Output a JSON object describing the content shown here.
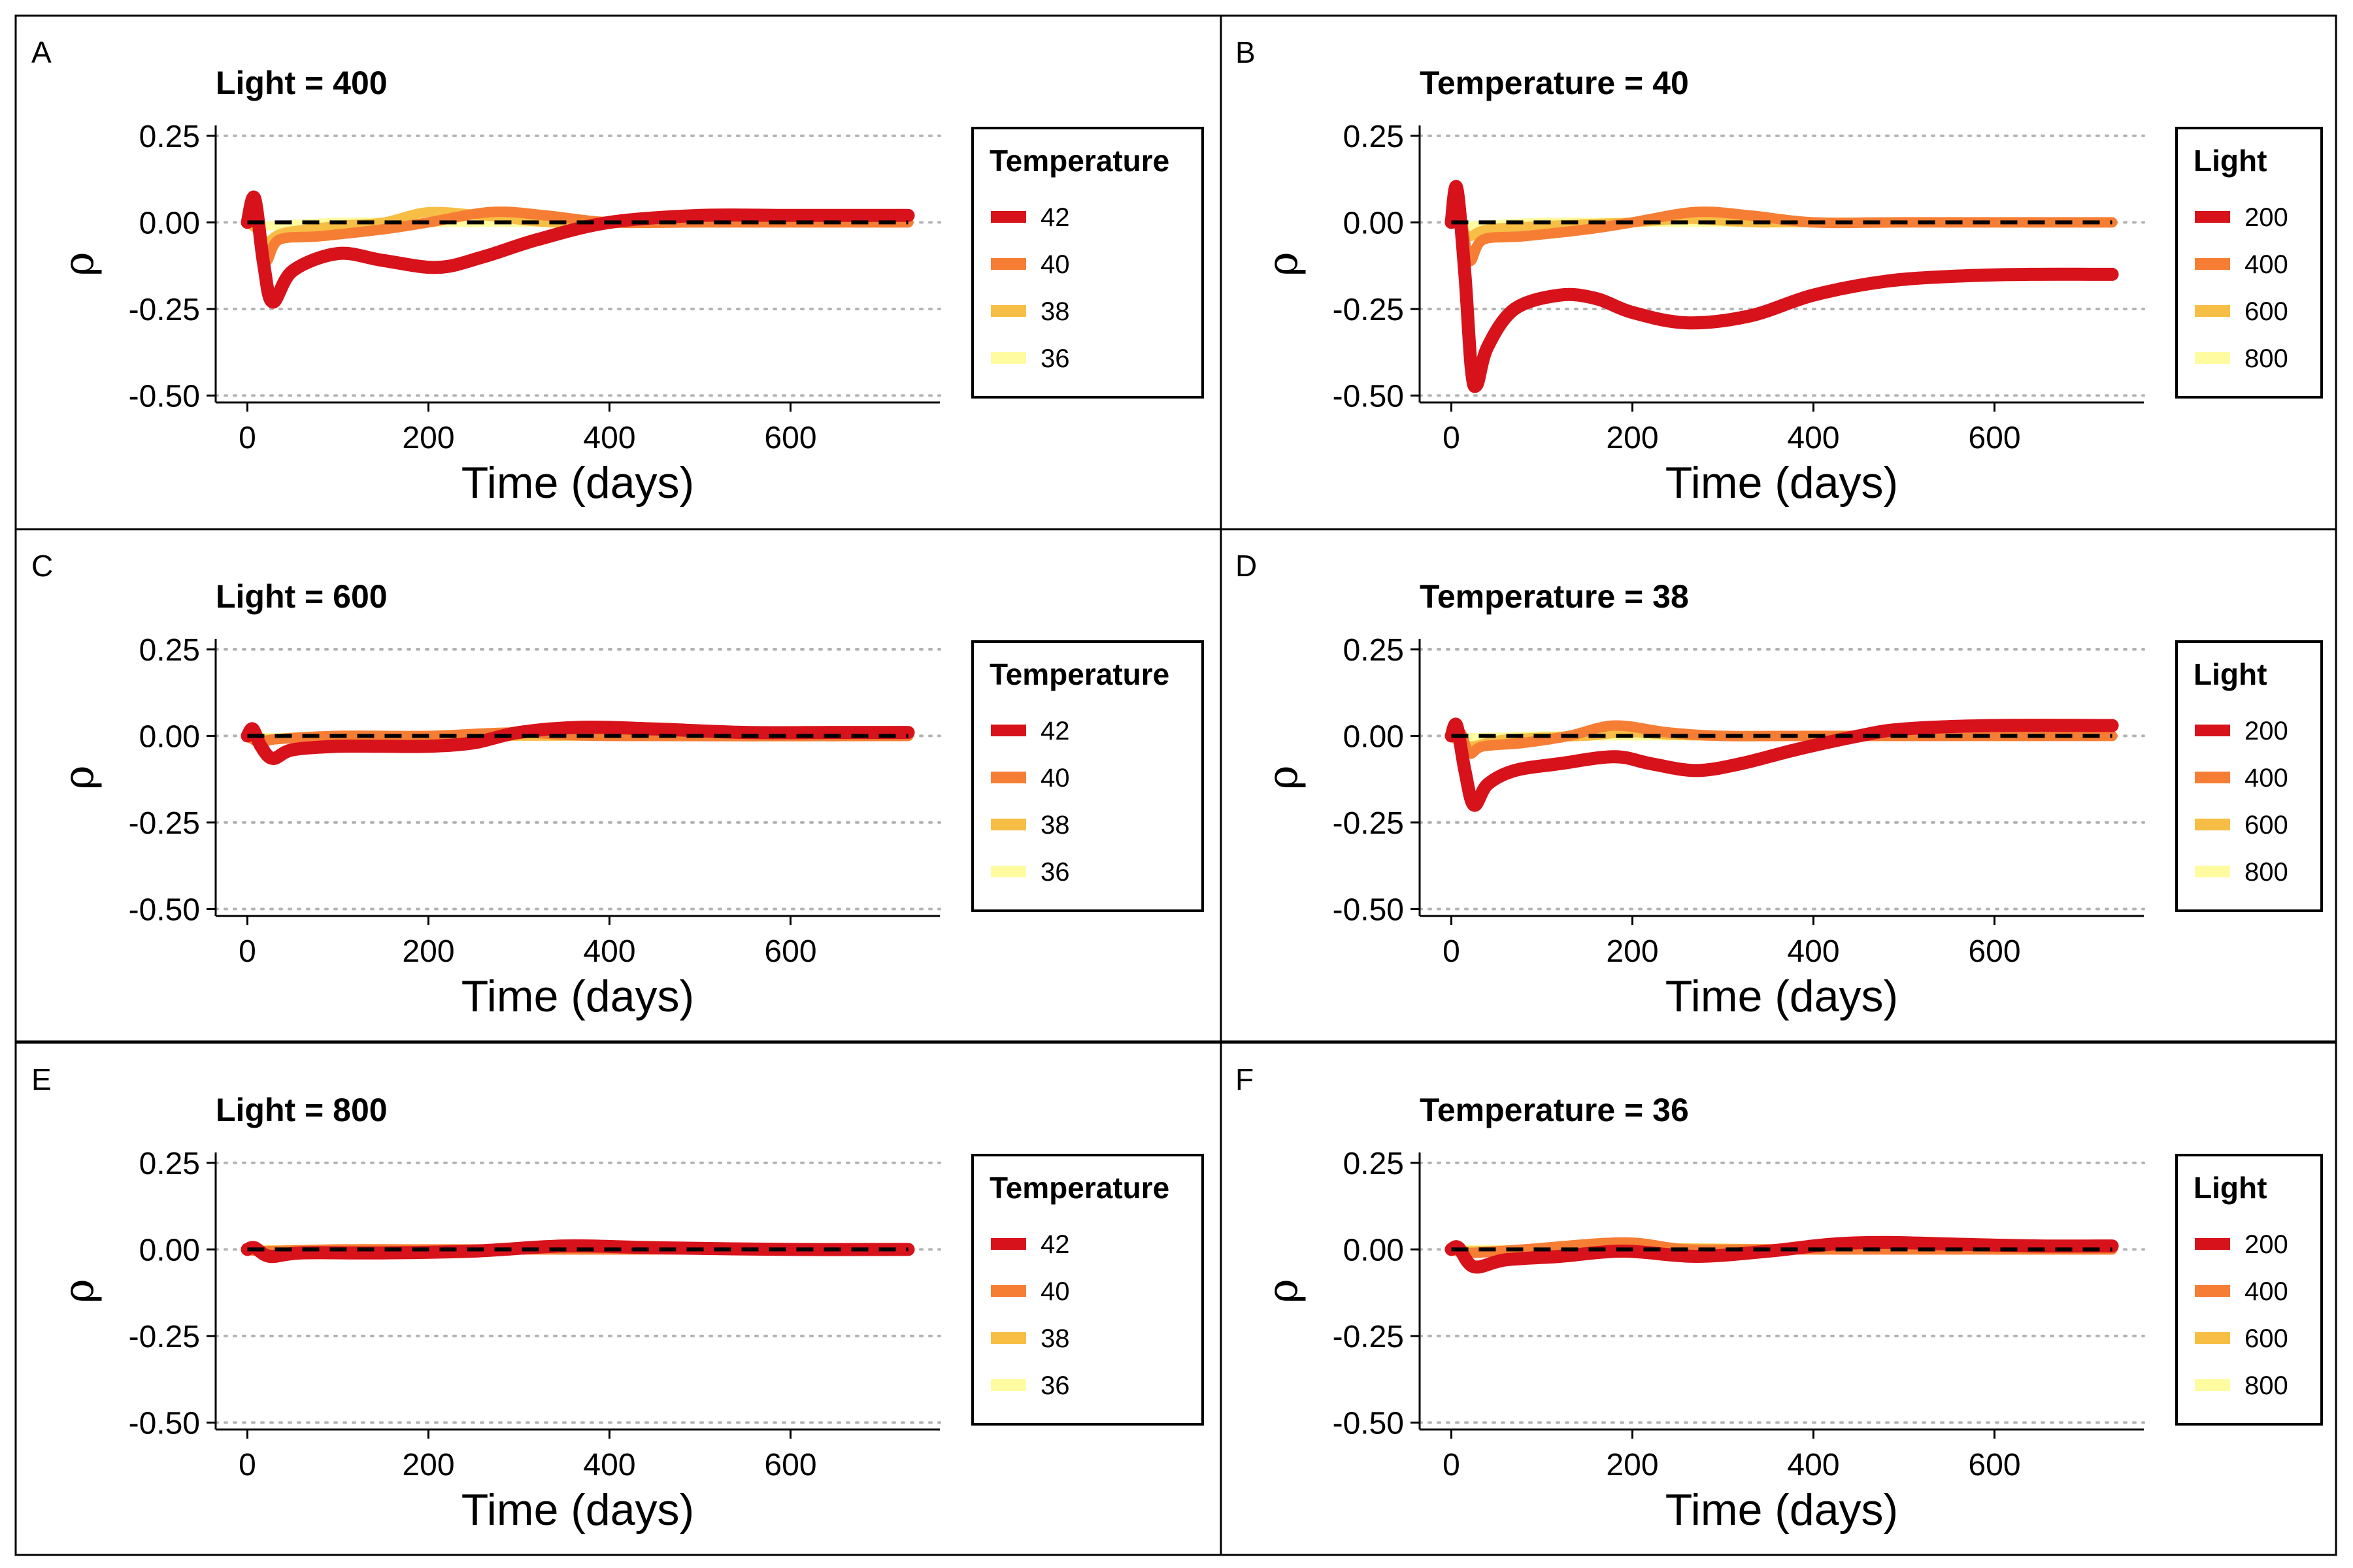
{
  "colors": {
    "s1": "#D7121B",
    "s2": "#F67E34",
    "s3": "#F7BE45",
    "s4": "#FEFBA1",
    "ref": "#000000",
    "grid": "#B3B3B3"
  },
  "chart_data": [
    {
      "panel": "A",
      "type": "line",
      "title": "Light = 400",
      "xlabel": "Time (days)",
      "ylabel": "ρ",
      "xlim": [
        -35,
        765
      ],
      "ylim": [
        -0.52,
        0.28
      ],
      "xticks": [
        "0",
        "200",
        "400",
        "600"
      ],
      "yticks": [
        "0.25",
        "0.00",
        "-0.25",
        "-0.50"
      ],
      "legend_title": "Temperature",
      "series": [
        {
          "name": "42",
          "x": [
            0,
            8,
            18,
            28,
            50,
            100,
            150,
            210,
            260,
            320,
            400,
            500,
            600,
            730
          ],
          "y": [
            0.0,
            0.07,
            -0.12,
            -0.23,
            -0.14,
            -0.09,
            -0.11,
            -0.13,
            -0.1,
            -0.05,
            0.0,
            0.02,
            0.02,
            0.02
          ]
        },
        {
          "name": "40",
          "x": [
            0,
            10,
            20,
            35,
            80,
            150,
            200,
            270,
            330,
            400,
            500,
            730
          ],
          "y": [
            0.0,
            0.02,
            -0.11,
            -0.05,
            -0.04,
            -0.02,
            0.0,
            0.03,
            0.02,
            0.0,
            0.0,
            0.0
          ]
        },
        {
          "name": "38",
          "x": [
            0,
            10,
            20,
            40,
            100,
            150,
            200,
            260,
            330,
            400,
            730
          ],
          "y": [
            0.0,
            -0.02,
            -0.06,
            -0.03,
            -0.01,
            0.0,
            0.03,
            0.02,
            0.0,
            0.0,
            0.0
          ]
        },
        {
          "name": "36",
          "x": [
            0,
            20,
            100,
            200,
            400,
            730
          ],
          "y": [
            0.0,
            -0.01,
            0.0,
            0.0,
            0.0,
            0.0
          ]
        }
      ]
    },
    {
      "panel": "B",
      "type": "line",
      "title": "Temperature = 40",
      "xlabel": "Time (days)",
      "ylabel": "ρ",
      "xlim": [
        -35,
        765
      ],
      "ylim": [
        -0.52,
        0.28
      ],
      "xticks": [
        "0",
        "200",
        "400",
        "600"
      ],
      "yticks": [
        "0.25",
        "0.00",
        "-0.25",
        "-0.50"
      ],
      "legend_title": "Light",
      "series": [
        {
          "name": "200",
          "x": [
            0,
            6,
            15,
            22,
            28,
            40,
            70,
            120,
            160,
            200,
            260,
            330,
            400,
            480,
            560,
            640,
            730
          ],
          "y": [
            0.0,
            0.1,
            -0.15,
            -0.42,
            -0.47,
            -0.36,
            -0.25,
            -0.21,
            -0.22,
            -0.26,
            -0.29,
            -0.27,
            -0.21,
            -0.17,
            -0.155,
            -0.15,
            -0.15
          ]
        },
        {
          "name": "400",
          "x": [
            0,
            10,
            20,
            35,
            80,
            150,
            200,
            270,
            330,
            400,
            500,
            730
          ],
          "y": [
            0.0,
            0.02,
            -0.11,
            -0.05,
            -0.04,
            -0.02,
            0.0,
            0.03,
            0.02,
            0.0,
            0.0,
            0.0
          ]
        },
        {
          "name": "600",
          "x": [
            0,
            10,
            20,
            40,
            100,
            200,
            260,
            330,
            400,
            730
          ],
          "y": [
            0.0,
            -0.01,
            -0.04,
            -0.02,
            -0.01,
            0.0,
            0.01,
            0.0,
            0.0,
            0.0
          ]
        },
        {
          "name": "800",
          "x": [
            0,
            20,
            100,
            200,
            400,
            730
          ],
          "y": [
            0.0,
            -0.01,
            0.0,
            0.0,
            0.0,
            0.0
          ]
        }
      ]
    },
    {
      "panel": "C",
      "type": "line",
      "title": "Light = 600",
      "xlabel": "Time (days)",
      "ylabel": "ρ",
      "xlim": [
        -35,
        765
      ],
      "ylim": [
        -0.52,
        0.28
      ],
      "xticks": [
        "0",
        "200",
        "400",
        "600"
      ],
      "yticks": [
        "0.25",
        "0.00",
        "-0.25",
        "-0.50"
      ],
      "legend_title": "Temperature",
      "series": [
        {
          "name": "42",
          "x": [
            0,
            6,
            15,
            28,
            50,
            100,
            150,
            200,
            250,
            300,
            370,
            450,
            550,
            650,
            730
          ],
          "y": [
            0.0,
            0.02,
            -0.03,
            -0.065,
            -0.04,
            -0.03,
            -0.03,
            -0.03,
            -0.02,
            0.01,
            0.025,
            0.02,
            0.01,
            0.01,
            0.01
          ]
        },
        {
          "name": "40",
          "x": [
            0,
            15,
            30,
            100,
            200,
            300,
            400,
            730
          ],
          "y": [
            0.0,
            -0.02,
            -0.01,
            0.0,
            0.0,
            0.01,
            0.0,
            0.0
          ]
        },
        {
          "name": "38",
          "x": [
            0,
            20,
            100,
            200,
            400,
            730
          ],
          "y": [
            0.0,
            -0.01,
            0.0,
            0.0,
            0.0,
            0.0
          ]
        },
        {
          "name": "36",
          "x": [
            0,
            20,
            100,
            200,
            400,
            730
          ],
          "y": [
            0.0,
            -0.005,
            0.0,
            0.0,
            0.0,
            0.0
          ]
        }
      ]
    },
    {
      "panel": "D",
      "type": "line",
      "title": "Temperature = 38",
      "xlabel": "Time (days)",
      "ylabel": "ρ",
      "xlim": [
        -35,
        765
      ],
      "ylim": [
        -0.52,
        0.28
      ],
      "xticks": [
        "0",
        "200",
        "400",
        "600"
      ],
      "yticks": [
        "0.25",
        "0.00",
        "-0.25",
        "-0.50"
      ],
      "legend_title": "Light",
      "series": [
        {
          "name": "200",
          "x": [
            0,
            6,
            15,
            25,
            40,
            70,
            120,
            180,
            220,
            270,
            320,
            380,
            450,
            500,
            600,
            730
          ],
          "y": [
            0.0,
            0.03,
            -0.1,
            -0.2,
            -0.14,
            -0.1,
            -0.08,
            -0.06,
            -0.08,
            -0.1,
            -0.08,
            -0.04,
            0.0,
            0.02,
            0.03,
            0.03
          ]
        },
        {
          "name": "400",
          "x": [
            0,
            10,
            20,
            35,
            80,
            130,
            180,
            240,
            300,
            400,
            730
          ],
          "y": [
            0.0,
            0.01,
            -0.05,
            -0.03,
            -0.02,
            0.0,
            0.03,
            0.01,
            0.0,
            0.0,
            0.0
          ]
        },
        {
          "name": "600",
          "x": [
            0,
            20,
            60,
            150,
            200,
            300,
            730
          ],
          "y": [
            0.0,
            -0.03,
            -0.01,
            0.0,
            0.01,
            0.0,
            0.0
          ]
        },
        {
          "name": "800",
          "x": [
            0,
            20,
            100,
            200,
            400,
            730
          ],
          "y": [
            0.0,
            -0.005,
            0.0,
            0.0,
            0.0,
            0.0
          ]
        }
      ]
    },
    {
      "panel": "E",
      "type": "line",
      "title": "Light = 800",
      "xlabel": "Time (days)",
      "ylabel": "ρ",
      "xlim": [
        -35,
        765
      ],
      "ylim": [
        -0.52,
        0.28
      ],
      "xticks": [
        "0",
        "200",
        "400",
        "600"
      ],
      "yticks": [
        "0.25",
        "0.00",
        "-0.25",
        "-0.50"
      ],
      "legend_title": "Temperature",
      "series": [
        {
          "name": "42",
          "x": [
            0,
            8,
            25,
            60,
            150,
            250,
            350,
            450,
            600,
            730
          ],
          "y": [
            0.0,
            0.005,
            -0.02,
            -0.01,
            -0.01,
            -0.005,
            0.01,
            0.005,
            0.0,
            0.0
          ]
        },
        {
          "name": "40",
          "x": [
            0,
            20,
            100,
            200,
            400,
            730
          ],
          "y": [
            0.0,
            -0.005,
            0.0,
            0.0,
            0.0,
            0.0
          ]
        },
        {
          "name": "38",
          "x": [
            0,
            20,
            100,
            200,
            400,
            730
          ],
          "y": [
            0.0,
            -0.003,
            0.0,
            0.0,
            0.0,
            0.0
          ]
        },
        {
          "name": "36",
          "x": [
            0,
            20,
            100,
            200,
            400,
            730
          ],
          "y": [
            0.0,
            0.0,
            0.0,
            0.0,
            0.0,
            0.0
          ]
        }
      ]
    },
    {
      "panel": "F",
      "type": "line",
      "title": "Temperature = 36",
      "xlabel": "Time (days)",
      "ylabel": "ρ",
      "xlim": [
        -35,
        765
      ],
      "ylim": [
        -0.52,
        0.28
      ],
      "xticks": [
        "0",
        "200",
        "400",
        "600"
      ],
      "yticks": [
        "0.25",
        "0.00",
        "-0.25",
        "-0.50"
      ],
      "legend_title": "Light",
      "series": [
        {
          "name": "200",
          "x": [
            0,
            8,
            25,
            60,
            120,
            190,
            270,
            350,
            420,
            480,
            560,
            650,
            730
          ],
          "y": [
            0.0,
            0.005,
            -0.05,
            -0.03,
            -0.02,
            -0.005,
            -0.02,
            -0.005,
            0.015,
            0.02,
            0.015,
            0.01,
            0.01
          ]
        },
        {
          "name": "400",
          "x": [
            0,
            20,
            80,
            190,
            260,
            350,
            730
          ],
          "y": [
            0.0,
            -0.01,
            0.0,
            0.02,
            0.0,
            0.0,
            0.0
          ]
        },
        {
          "name": "600",
          "x": [
            0,
            20,
            100,
            200,
            400,
            730
          ],
          "y": [
            0.0,
            -0.005,
            0.0,
            0.005,
            0.0,
            0.0
          ]
        },
        {
          "name": "800",
          "x": [
            0,
            20,
            100,
            200,
            400,
            730
          ],
          "y": [
            0.0,
            0.0,
            0.0,
            0.0,
            0.0,
            0.0
          ]
        }
      ]
    }
  ]
}
